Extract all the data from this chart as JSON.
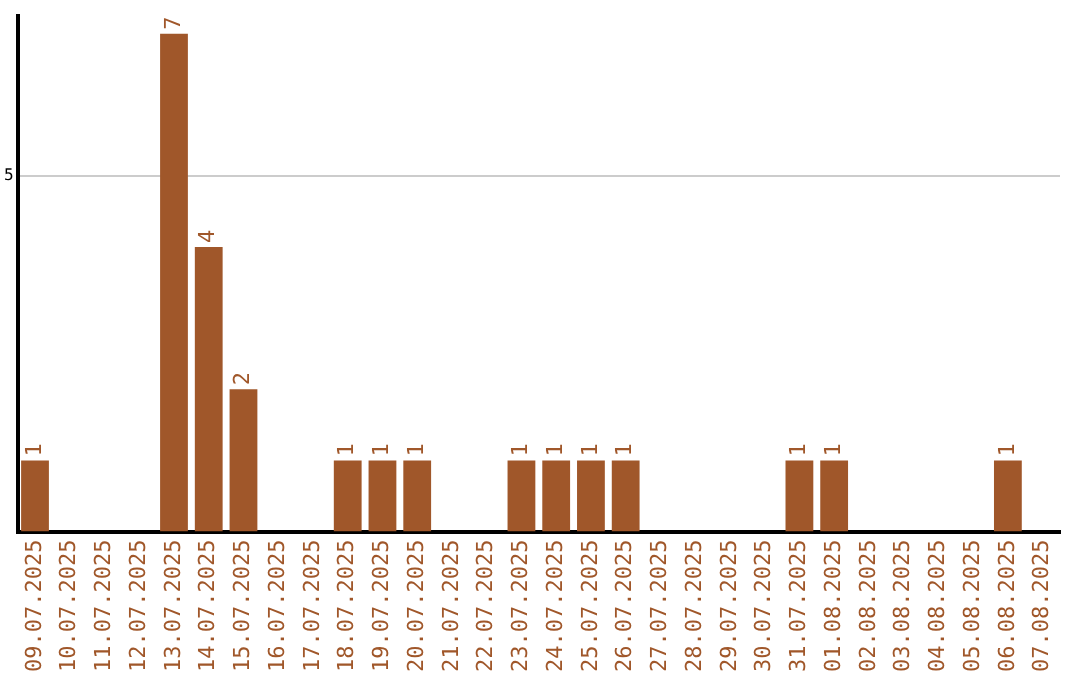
{
  "chart_data": {
    "type": "bar",
    "categories": [
      "09.07.2025",
      "10.07.2025",
      "11.07.2025",
      "12.07.2025",
      "13.07.2025",
      "14.07.2025",
      "15.07.2025",
      "16.07.2025",
      "17.07.2025",
      "18.07.2025",
      "19.07.2025",
      "20.07.2025",
      "21.07.2025",
      "22.07.2025",
      "23.07.2025",
      "24.07.2025",
      "25.07.2025",
      "26.07.2025",
      "27.07.2025",
      "28.07.2025",
      "29.07.2025",
      "30.07.2025",
      "31.07.2025",
      "01.08.2025",
      "02.08.2025",
      "03.08.2025",
      "04.08.2025",
      "05.08.2025",
      "06.08.2025",
      "07.08.2025"
    ],
    "values": [
      1,
      0,
      0,
      0,
      7,
      4,
      2,
      0,
      0,
      1,
      1,
      1,
      0,
      0,
      1,
      1,
      1,
      1,
      0,
      0,
      0,
      0,
      1,
      1,
      0,
      0,
      0,
      0,
      1,
      0
    ],
    "value_labels": [
      "1",
      null,
      null,
      null,
      "7",
      "4",
      "2",
      null,
      null,
      "1",
      "1",
      "1",
      null,
      null,
      "1",
      "1",
      "1",
      "1",
      null,
      null,
      null,
      null,
      "1",
      "1",
      null,
      null,
      null,
      null,
      "1",
      null
    ],
    "color": "#a0572a",
    "ylim": [
      0,
      7.25
    ],
    "yticks": [
      5
    ],
    "grid": "y",
    "legend": false
  }
}
